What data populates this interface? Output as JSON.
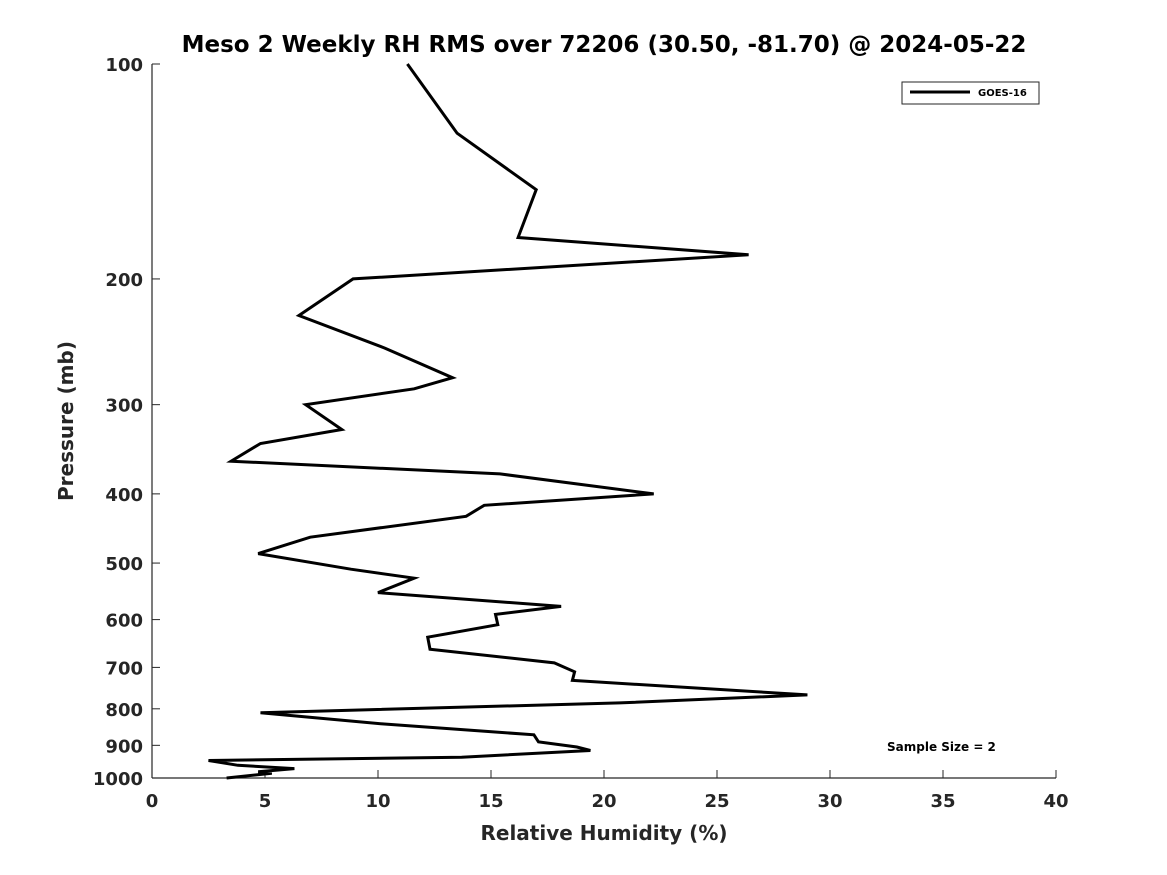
{
  "chart_data": {
    "type": "line",
    "title": "Meso 2 Weekly RH RMS over 72206 (30.50, -81.70) @ 2024-05-22",
    "xlabel": "Relative Humidity (%)",
    "ylabel": "Pressure (mb)",
    "xlim": [
      0,
      40
    ],
    "ylim": [
      100,
      1000
    ],
    "yscale": "log",
    "y_reversed": true,
    "xticks": [
      0,
      5,
      10,
      15,
      20,
      25,
      30,
      35,
      40
    ],
    "yticks": [
      100,
      200,
      300,
      400,
      500,
      600,
      700,
      800,
      900,
      1000
    ],
    "grid": false,
    "legend_position": "top-right",
    "annotation": "Sample Size = 2",
    "series": [
      {
        "name": "GOES-16",
        "color": "#000000",
        "points": [
          {
            "rh": 11.3,
            "p": 100
          },
          {
            "rh": 13.5,
            "p": 125
          },
          {
            "rh": 17.0,
            "p": 150
          },
          {
            "rh": 16.2,
            "p": 175
          },
          {
            "rh": 26.4,
            "p": 185
          },
          {
            "rh": 8.9,
            "p": 200
          },
          {
            "rh": 6.5,
            "p": 225
          },
          {
            "rh": 10.3,
            "p": 250
          },
          {
            "rh": 13.3,
            "p": 275
          },
          {
            "rh": 11.6,
            "p": 285
          },
          {
            "rh": 6.8,
            "p": 300
          },
          {
            "rh": 8.4,
            "p": 325
          },
          {
            "rh": 4.8,
            "p": 340
          },
          {
            "rh": 3.5,
            "p": 360
          },
          {
            "rh": 15.4,
            "p": 375
          },
          {
            "rh": 22.2,
            "p": 400
          },
          {
            "rh": 14.7,
            "p": 415
          },
          {
            "rh": 13.9,
            "p": 430
          },
          {
            "rh": 7.0,
            "p": 460
          },
          {
            "rh": 4.7,
            "p": 485
          },
          {
            "rh": 8.8,
            "p": 510
          },
          {
            "rh": 11.6,
            "p": 525
          },
          {
            "rh": 10.0,
            "p": 550
          },
          {
            "rh": 18.1,
            "p": 575
          },
          {
            "rh": 15.2,
            "p": 590
          },
          {
            "rh": 15.3,
            "p": 610
          },
          {
            "rh": 12.2,
            "p": 635
          },
          {
            "rh": 12.3,
            "p": 660
          },
          {
            "rh": 17.8,
            "p": 690
          },
          {
            "rh": 18.7,
            "p": 710
          },
          {
            "rh": 18.6,
            "p": 730
          },
          {
            "rh": 29.0,
            "p": 765
          },
          {
            "rh": 20.7,
            "p": 785
          },
          {
            "rh": 4.8,
            "p": 810
          },
          {
            "rh": 10.2,
            "p": 840
          },
          {
            "rh": 16.9,
            "p": 870
          },
          {
            "rh": 17.1,
            "p": 890
          },
          {
            "rh": 18.8,
            "p": 905
          },
          {
            "rh": 19.4,
            "p": 915
          },
          {
            "rh": 13.7,
            "p": 935
          },
          {
            "rh": 2.5,
            "p": 945
          },
          {
            "rh": 3.8,
            "p": 960
          },
          {
            "rh": 6.3,
            "p": 970
          },
          {
            "rh": 4.7,
            "p": 980
          },
          {
            "rh": 5.3,
            "p": 985
          },
          {
            "rh": 3.3,
            "p": 1000
          }
        ]
      }
    ]
  }
}
